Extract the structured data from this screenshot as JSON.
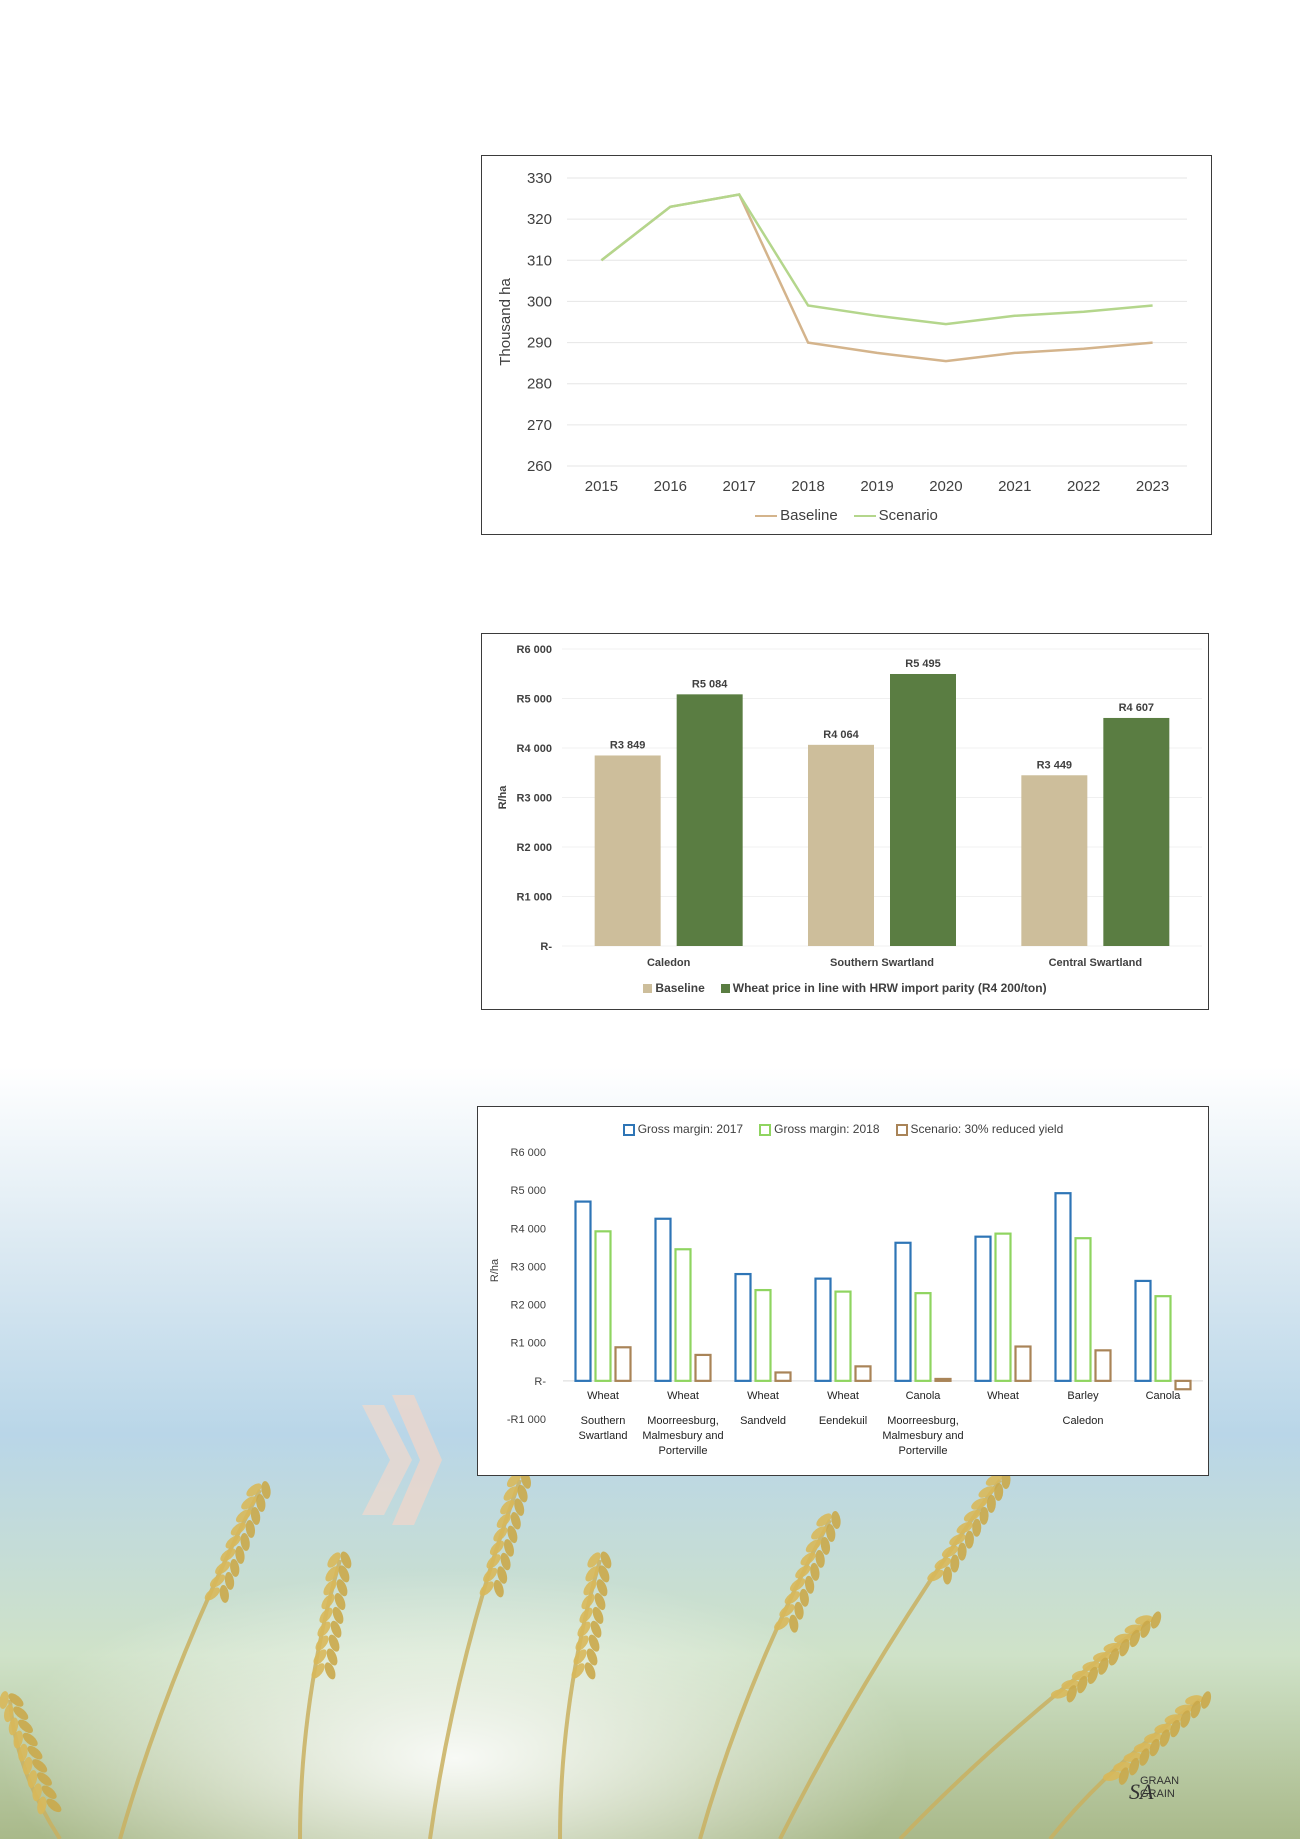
{
  "colors": {
    "baseline_line": "#d4b48c",
    "scenario_line": "#b4d68c",
    "baseline_bar": "#cdbe9b",
    "scenario_bar": "#5a7d42",
    "gm2017": "#2e75b6",
    "gm2018": "#8fd460",
    "reduced": "#a98458",
    "axis_text": "#404040"
  },
  "chart_data": [
    {
      "type": "line",
      "title": "",
      "ylabel": "Thousand ha",
      "xlabel": "",
      "x": [
        "2015",
        "2016",
        "2017",
        "2018",
        "2019",
        "2020",
        "2021",
        "2022",
        "2023"
      ],
      "ylim": [
        260,
        330
      ],
      "yticks": [
        260,
        270,
        280,
        290,
        300,
        310,
        320,
        330
      ],
      "grid": true,
      "legend": "bottom",
      "series": [
        {
          "name": "Baseline",
          "values": [
            310,
            323,
            326,
            290,
            287.5,
            285.5,
            287.5,
            288.5,
            290
          ]
        },
        {
          "name": "Scenario",
          "values": [
            310,
            323,
            326,
            299,
            296.5,
            294.5,
            296.5,
            297.5,
            299
          ]
        }
      ]
    },
    {
      "type": "bar",
      "title": "",
      "ylabel": "R/ha",
      "xlabel": "",
      "categories": [
        "Caledon",
        "Southern Swartland",
        "Central Swartland"
      ],
      "ylim": [
        0,
        6000
      ],
      "ytick_labels": [
        "R-",
        "R1 000",
        "R2 000",
        "R3 000",
        "R4 000",
        "R5 000",
        "R6 000"
      ],
      "legend": "bottom",
      "series": [
        {
          "name": "Baseline",
          "values": [
            3849,
            4064,
            3449
          ],
          "labels": [
            "R3 849",
            "R4 064",
            "R3 449"
          ]
        },
        {
          "name": "Wheat price in line with HRW import parity (R4 200/ton)",
          "values": [
            5084,
            5495,
            4607
          ],
          "labels": [
            "R5 084",
            "R5 495",
            "R4 607"
          ]
        }
      ]
    },
    {
      "type": "bar",
      "title": "",
      "ylabel": "R/ha",
      "xlabel": "",
      "categories": [
        "Wheat",
        "Wheat",
        "Wheat",
        "Wheat",
        "Canola",
        "Wheat",
        "Barley",
        "Canola"
      ],
      "regions": [
        {
          "label": "Southern\nSwartland",
          "span": [
            0,
            0
          ]
        },
        {
          "label": "Moorreesburg,\nMalmesbury and\nPorterville",
          "span": [
            1,
            1
          ]
        },
        {
          "label": "Sandveld",
          "span": [
            2,
            2
          ]
        },
        {
          "label": "Eendekuil",
          "span": [
            3,
            3
          ]
        },
        {
          "label": "Moorreesburg,\nMalmesbury and\nPorterville",
          "span": [
            4,
            4
          ]
        },
        {
          "label": "Caledon",
          "span": [
            5,
            7
          ]
        }
      ],
      "ylim": [
        -1000,
        6000
      ],
      "ytick_values": [
        -1000,
        0,
        1000,
        2000,
        3000,
        4000,
        5000,
        6000
      ],
      "ytick_labels": [
        "-R1 000",
        "R-",
        "R1 000",
        "R2 000",
        "R3 000",
        "R4 000",
        "R5 000",
        "R6 000"
      ],
      "legend": "top",
      "series": [
        {
          "name": "Gross margin: 2017",
          "values": [
            4700,
            4250,
            2800,
            2680,
            3620,
            3780,
            4920,
            2620
          ]
        },
        {
          "name": "Gross margin: 2018",
          "values": [
            3920,
            3450,
            2380,
            2340,
            2300,
            3860,
            3740,
            2220
          ]
        },
        {
          "name": "Scenario: 30% reduced yield",
          "values": [
            880,
            680,
            220,
            380,
            50,
            900,
            800,
            -220
          ]
        }
      ]
    }
  ],
  "logo": {
    "sa": "SA",
    "graan": "GRAAN",
    "grain": "GRAIN"
  }
}
